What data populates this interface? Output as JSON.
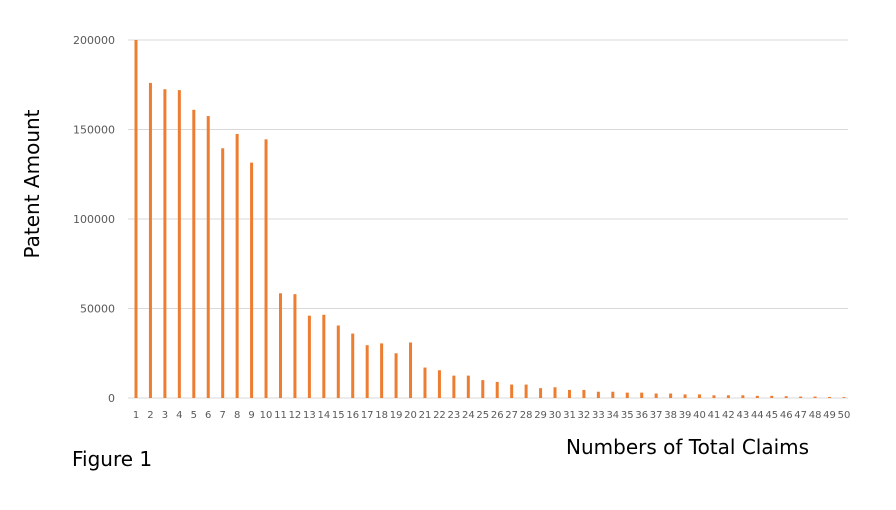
{
  "caption": "Figure 1",
  "chart_data": {
    "type": "bar",
    "title": "",
    "xlabel": "Numbers of Total Claims",
    "ylabel": "Patent Amount",
    "ylim": [
      0,
      200000
    ],
    "yticks": [
      "0",
      "50000",
      "100000",
      "150000",
      "200000"
    ],
    "grid": true,
    "color": "#ED7D31",
    "categories": [
      "1",
      "2",
      "3",
      "4",
      "5",
      "6",
      "7",
      "8",
      "9",
      "10",
      "11",
      "12",
      "13",
      "14",
      "15",
      "16",
      "17",
      "18",
      "19",
      "20",
      "21",
      "22",
      "23",
      "24",
      "25",
      "26",
      "27",
      "28",
      "29",
      "30",
      "31",
      "32",
      "33",
      "34",
      "35",
      "36",
      "37",
      "38",
      "39",
      "40",
      "41",
      "42",
      "43",
      "44",
      "45",
      "46",
      "47",
      "48",
      "49",
      "50"
    ],
    "values": [
      200000,
      176000,
      172500,
      172000,
      161000,
      157500,
      139500,
      147500,
      131500,
      144500,
      58500,
      58000,
      46000,
      46500,
      40500,
      36000,
      29500,
      30500,
      25000,
      31000,
      17000,
      15500,
      12500,
      12500,
      10000,
      9000,
      7500,
      7500,
      5500,
      6000,
      4500,
      4500,
      3500,
      3500,
      3000,
      3000,
      2500,
      2500,
      2000,
      2000,
      1500,
      1500,
      1500,
      1200,
      1200,
      1000,
      800,
      800,
      600,
      500
    ]
  }
}
